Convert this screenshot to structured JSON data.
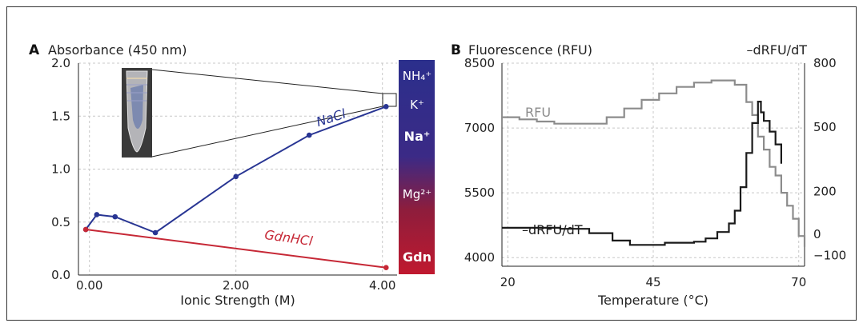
{
  "chart_data": [
    {
      "type": "line",
      "panel_label": "A",
      "ylabel": "Absorbance (450 nm)",
      "xlabel": "Ionic Strength (M)",
      "xlim": [
        -0.15,
        4.2
      ],
      "ylim": [
        0.0,
        2.0
      ],
      "x_ticks": [
        0,
        2,
        4
      ],
      "x_tick_labels": [
        "0.00",
        "2.00",
        "4.00"
      ],
      "y_ticks": [
        0.0,
        0.5,
        1.0,
        1.5,
        2.0
      ],
      "y_tick_labels": [
        "0.0",
        "0.5",
        "1.0",
        "1.5",
        "2.0"
      ],
      "grid": true,
      "series": [
        {
          "name": "NaCl",
          "color": "#283593",
          "x": [
            -0.05,
            0.1,
            0.35,
            0.9,
            2.0,
            3.0,
            4.05
          ],
          "y": [
            0.43,
            0.57,
            0.55,
            0.4,
            0.93,
            1.32,
            1.59
          ]
        },
        {
          "name": "GdnHCl",
          "color": "#c62836",
          "x": [
            -0.05,
            4.05
          ],
          "y": [
            0.43,
            0.07
          ]
        }
      ],
      "colorbar": {
        "labels": [
          "NH₄⁺",
          "K⁺",
          "Na⁺",
          "Mg²⁺",
          "Gdn"
        ],
        "bold": [
          false,
          false,
          true,
          false,
          true
        ],
        "colors": [
          "#2b2f8c",
          "#8e1d3c",
          "#c0192f"
        ]
      }
    },
    {
      "type": "line",
      "panel_label": "B",
      "ylabel": "Fluorescence (RFU)",
      "y2label": "–dRFU/dT",
      "xlabel": "Temperature (°C)",
      "xlim": [
        19,
        71
      ],
      "ylim": [
        3800,
        8500
      ],
      "y2lim": [
        -150,
        800
      ],
      "x_ticks": [
        20,
        45,
        70
      ],
      "y_ticks": [
        4000,
        5500,
        7000,
        8500
      ],
      "y2_ticks": [
        -100,
        0,
        200,
        500,
        800
      ],
      "y2_tick_labels": [
        "−100",
        "0",
        "200",
        "500",
        "800"
      ],
      "grid": true,
      "series": [
        {
          "name": "RFU",
          "axis": "left",
          "color": "#8c8c8c",
          "x": [
            19,
            22,
            25,
            28,
            31,
            34,
            37,
            40,
            43,
            46,
            49,
            52,
            55,
            57,
            59,
            61,
            62,
            63,
            64,
            65,
            66,
            67,
            68,
            69,
            70,
            71
          ],
          "y": [
            7250,
            7200,
            7150,
            7100,
            7100,
            7100,
            7250,
            7450,
            7650,
            7800,
            7950,
            8050,
            8100,
            8100,
            8000,
            7600,
            7300,
            6800,
            6500,
            6100,
            5900,
            5500,
            5200,
            4900,
            4500,
            4250
          ]
        },
        {
          "name": "–dRFU/dT",
          "axis": "right",
          "color": "#1a1a1a",
          "x": [
            19,
            24,
            29,
            34,
            38,
            41,
            44,
            47,
            50,
            52,
            54,
            56,
            58,
            59,
            60,
            61,
            62,
            63,
            63.5,
            64,
            65,
            66,
            67
          ],
          "y": [
            30,
            30,
            25,
            5,
            -30,
            -50,
            -50,
            -40,
            -40,
            -35,
            -20,
            10,
            50,
            110,
            220,
            380,
            520,
            620,
            570,
            530,
            480,
            420,
            330
          ]
        }
      ],
      "annotations": [
        "RFU",
        "–dRFU/dT"
      ]
    }
  ]
}
